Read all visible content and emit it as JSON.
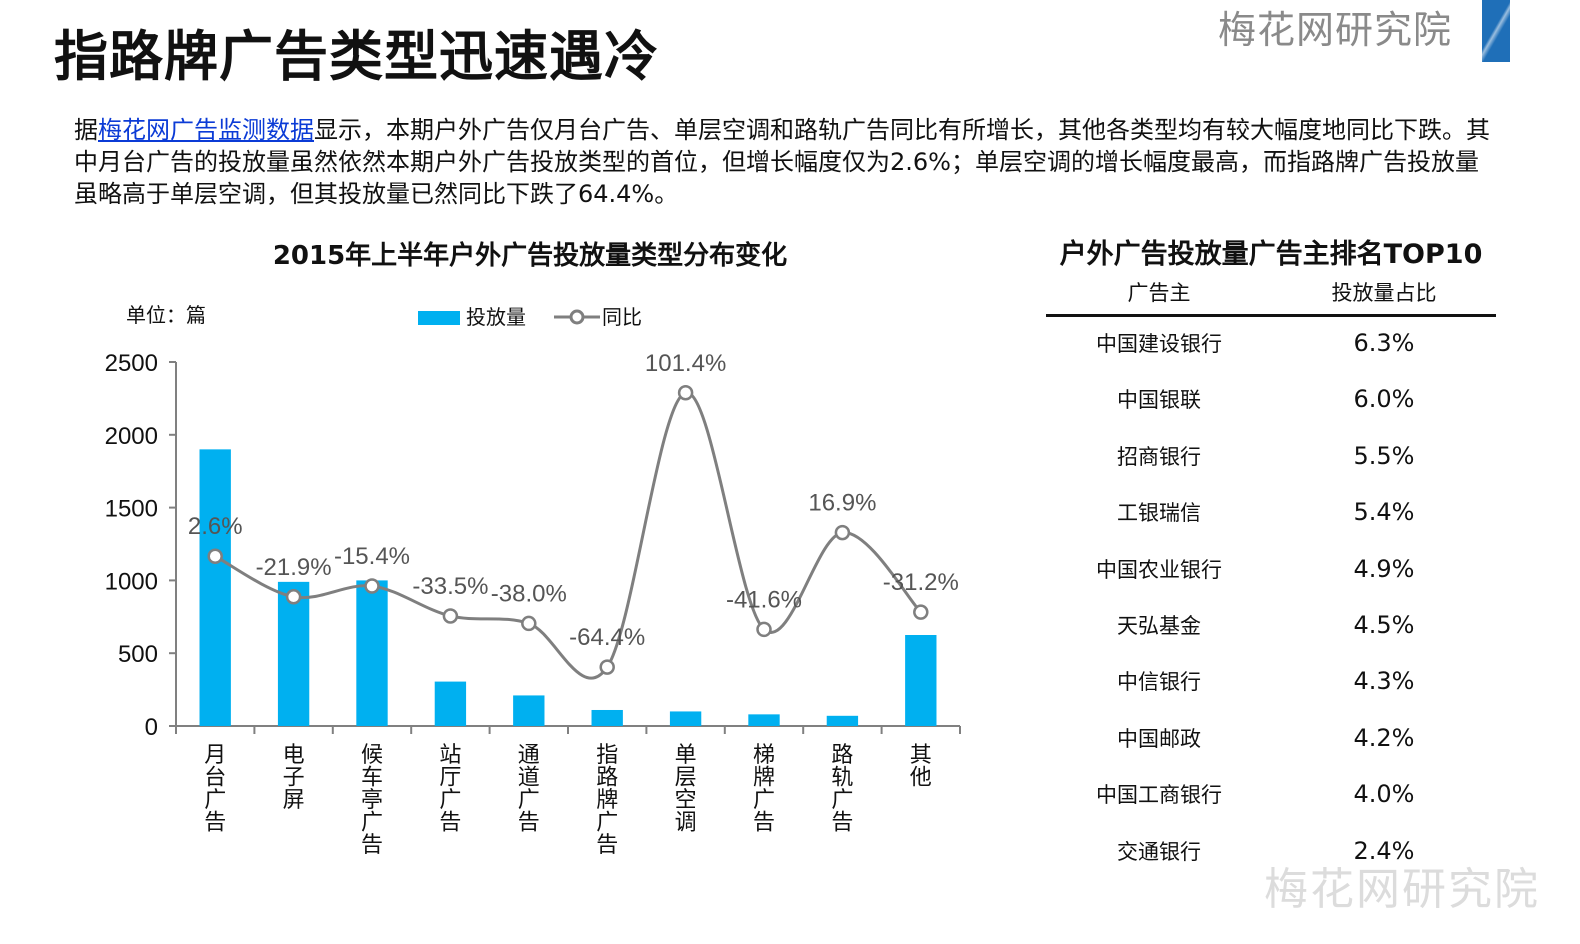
{
  "header": {
    "title": "指路牌广告类型迅速遇冷",
    "brand": "梅花网研究院"
  },
  "intro": {
    "pre_link": "据",
    "link_text": "梅花网广告监测数据",
    "post_link": "显示，本期户外广告仅月台广告、单层空调和路轨广告同比有所增长，其他各类型均有较大幅度地同比下跌。其中月台广告的投放量虽然依然本期户外广告投放类型的首位，但增长幅度仅为2.6%；单层空调的增长幅度最高，而指路牌广告投放量虽略高于单层空调，但其投放量已然同比下跌了64.4%。"
  },
  "chart_data": {
    "type": "bar",
    "title": "2015年上半年户外广告投放量类型分布变化",
    "unit_label": "单位：篇",
    "categories": [
      "月台广告",
      "电子屏",
      "候车亭广告",
      "站厅广告",
      "通道广告",
      "指路牌广告",
      "单层空调",
      "梯牌广告",
      "路轨广告",
      "其他"
    ],
    "ylim": [
      0,
      2500
    ],
    "yticks": [
      0,
      500,
      1000,
      1500,
      2000,
      2500
    ],
    "legend_position": "top",
    "colors": {
      "bar": "#00b0f0",
      "line": "#7f7f7f"
    },
    "series": [
      {
        "name": "投放量",
        "type": "bar",
        "values": [
          1900,
          990,
          1000,
          305,
          210,
          110,
          100,
          80,
          70,
          625
        ]
      },
      {
        "name": "同比",
        "type": "line",
        "values": [
          2.6,
          -21.9,
          -15.4,
          -33.5,
          -38.0,
          -64.4,
          101.4,
          -41.6,
          16.9,
          -31.2
        ],
        "labels": [
          "2.6%",
          "-21.9%",
          "-15.4%",
          "-33.5%",
          "-38.0%",
          "-64.4%",
          "101.4%",
          "-41.6%",
          "16.9%",
          "-31.2%"
        ]
      }
    ]
  },
  "top10": {
    "title": "户外广告投放量广告主排名TOP10",
    "headers": [
      "广告主",
      "投放量占比"
    ],
    "rows": [
      {
        "name": "中国建设银行",
        "share": "6.3%"
      },
      {
        "name": "中国银联",
        "share": "6.0%"
      },
      {
        "name": "招商银行",
        "share": "5.5%"
      },
      {
        "name": "工银瑞信",
        "share": "5.4%"
      },
      {
        "name": "中国农业银行",
        "share": "4.9%"
      },
      {
        "name": "天弘基金",
        "share": "4.5%"
      },
      {
        "name": "中信银行",
        "share": "4.3%"
      },
      {
        "name": "中国邮政",
        "share": "4.2%"
      },
      {
        "name": "中国工商银行",
        "share": "4.0%"
      },
      {
        "name": "交通银行",
        "share": "2.4%"
      }
    ]
  },
  "watermark": "梅花网研究院"
}
